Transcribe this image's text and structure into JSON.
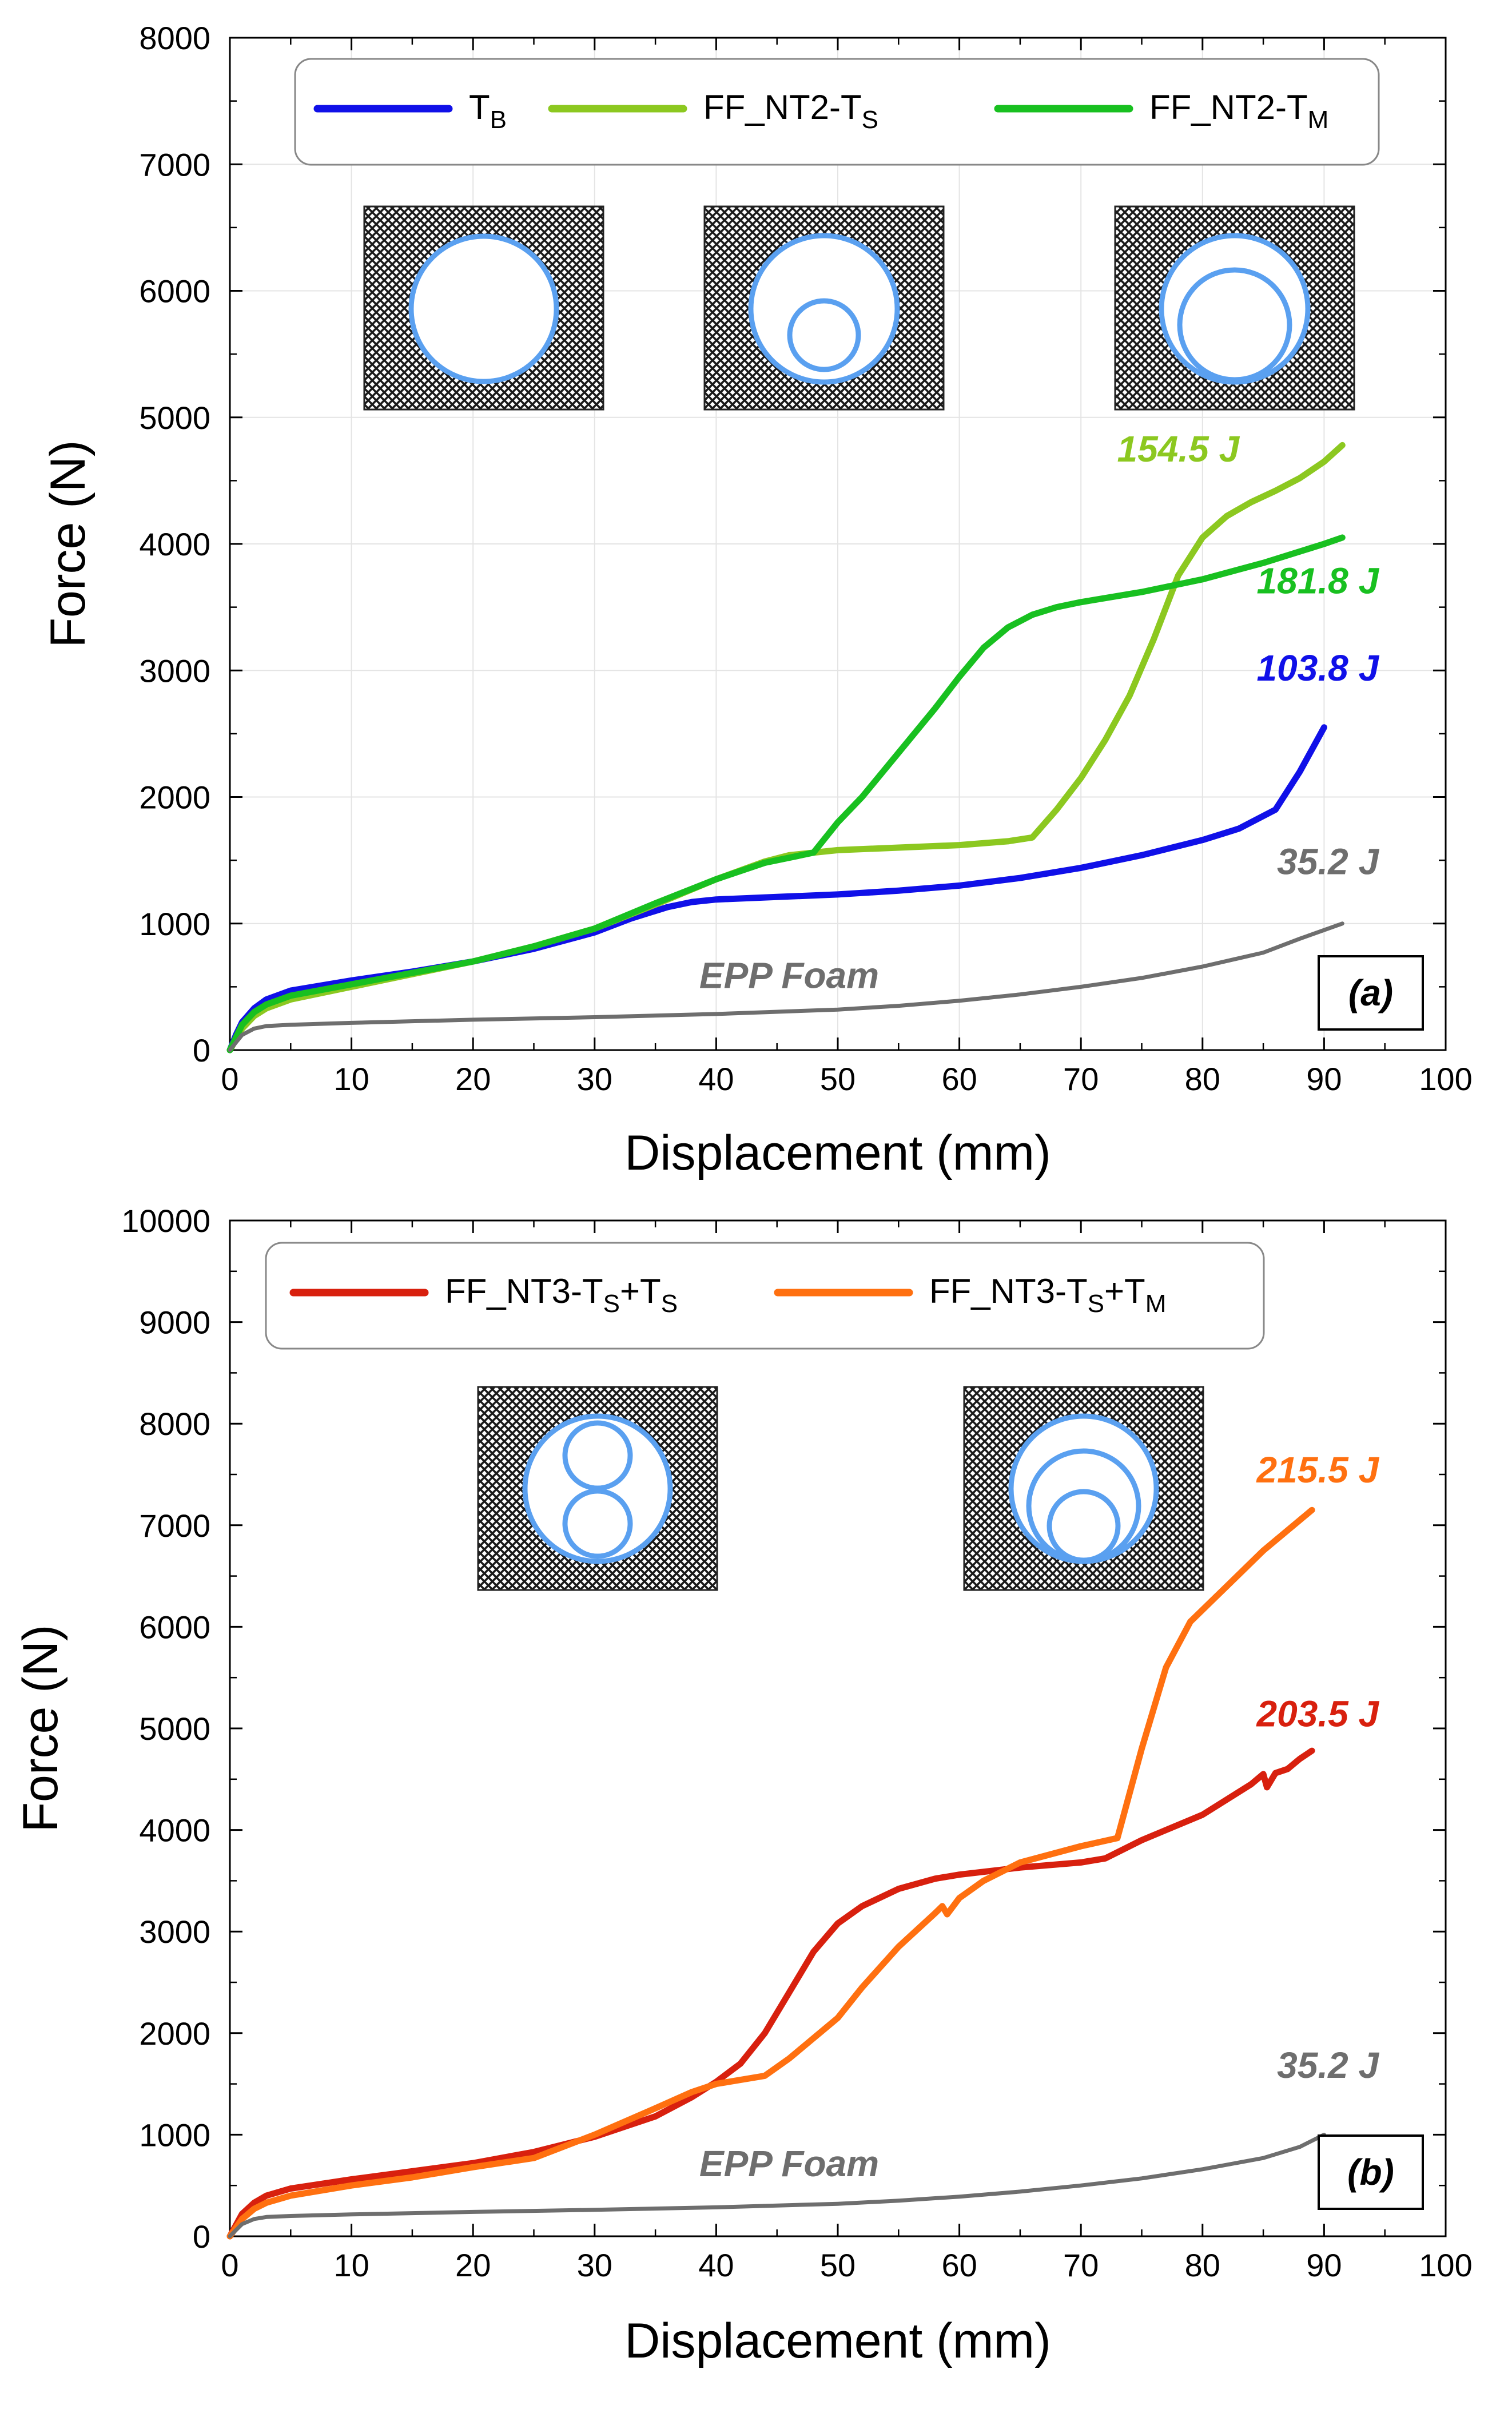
{
  "figure": {
    "panels": [
      {
        "label": "(a)"
      },
      {
        "label": "(b)"
      }
    ]
  },
  "colors": {
    "TB": "#1010e8",
    "FF_NT2_TS": "#8cc820",
    "FF_NT2_TM": "#18c020",
    "FF_NT3_TS_TS": "#d8200e",
    "FF_NT3_TS_TM": "#ff7010",
    "EPP": "#6e6e6e",
    "tube": "#5aa0f0"
  },
  "chart_data": [
    {
      "type": "line",
      "panel_label": "(a)",
      "xlabel": "Displacement (mm)",
      "ylabel": "Force (N)",
      "xlim": [
        0,
        100
      ],
      "ylim": [
        0,
        8000
      ],
      "xticks": [
        "0",
        "10",
        "20",
        "30",
        "40",
        "50",
        "60",
        "70",
        "80",
        "90",
        "100"
      ],
      "yticks": [
        "0",
        "1000",
        "2000",
        "3000",
        "4000",
        "5000",
        "6000",
        "7000",
        "8000"
      ],
      "grid": true,
      "legend_position": "top",
      "legend": [
        {
          "base": "T",
          "sub": "B",
          "suffix": "",
          "suffix_sub": "",
          "series": 0
        },
        {
          "base": "FF_NT2-T",
          "sub": "S",
          "suffix": "",
          "suffix_sub": "",
          "series": 1
        },
        {
          "base": "FF_NT2-T",
          "sub": "M",
          "suffix": "",
          "suffix_sub": "",
          "series": 2
        }
      ],
      "series": [
        {
          "name": "TB",
          "color": "#1010e8",
          "points": [
            [
              0,
              0
            ],
            [
              0.5,
              120
            ],
            [
              1,
              220
            ],
            [
              2,
              330
            ],
            [
              3,
              400
            ],
            [
              5,
              470
            ],
            [
              10,
              550
            ],
            [
              15,
              620
            ],
            [
              20,
              700
            ],
            [
              25,
              800
            ],
            [
              30,
              930
            ],
            [
              33,
              1040
            ],
            [
              36,
              1130
            ],
            [
              38,
              1170
            ],
            [
              40,
              1190
            ],
            [
              45,
              1210
            ],
            [
              50,
              1230
            ],
            [
              55,
              1260
            ],
            [
              60,
              1300
            ],
            [
              65,
              1360
            ],
            [
              70,
              1440
            ],
            [
              75,
              1540
            ],
            [
              80,
              1660
            ],
            [
              83,
              1750
            ],
            [
              86,
              1900
            ],
            [
              88,
              2200
            ],
            [
              90,
              2550
            ]
          ]
        },
        {
          "name": "FF_NT2-TS",
          "color": "#8cc820",
          "points": [
            [
              0,
              0
            ],
            [
              1,
              170
            ],
            [
              2,
              270
            ],
            [
              3,
              330
            ],
            [
              5,
              400
            ],
            [
              10,
              500
            ],
            [
              15,
              600
            ],
            [
              20,
              700
            ],
            [
              25,
              820
            ],
            [
              30,
              960
            ],
            [
              35,
              1150
            ],
            [
              40,
              1350
            ],
            [
              44,
              1490
            ],
            [
              46,
              1540
            ],
            [
              48,
              1560
            ],
            [
              50,
              1580
            ],
            [
              55,
              1600
            ],
            [
              60,
              1620
            ],
            [
              64,
              1650
            ],
            [
              66,
              1680
            ],
            [
              68,
              1900
            ],
            [
              70,
              2150
            ],
            [
              72,
              2450
            ],
            [
              74,
              2800
            ],
            [
              76,
              3250
            ],
            [
              78,
              3750
            ],
            [
              80,
              4050
            ],
            [
              82,
              4220
            ],
            [
              84,
              4330
            ],
            [
              86,
              4420
            ],
            [
              88,
              4520
            ],
            [
              90,
              4650
            ],
            [
              91.5,
              4780
            ]
          ]
        },
        {
          "name": "FF_NT2-TM",
          "color": "#18c020",
          "points": [
            [
              0,
              0
            ],
            [
              1,
              200
            ],
            [
              2,
              300
            ],
            [
              3,
              360
            ],
            [
              5,
              430
            ],
            [
              10,
              520
            ],
            [
              15,
              610
            ],
            [
              20,
              700
            ],
            [
              25,
              820
            ],
            [
              30,
              960
            ],
            [
              35,
              1160
            ],
            [
              40,
              1350
            ],
            [
              44,
              1480
            ],
            [
              47,
              1540
            ],
            [
              48,
              1560
            ],
            [
              50,
              1800
            ],
            [
              52,
              2000
            ],
            [
              55,
              2350
            ],
            [
              58,
              2700
            ],
            [
              60,
              2950
            ],
            [
              62,
              3180
            ],
            [
              64,
              3340
            ],
            [
              66,
              3440
            ],
            [
              68,
              3500
            ],
            [
              70,
              3540
            ],
            [
              75,
              3620
            ],
            [
              80,
              3720
            ],
            [
              85,
              3850
            ],
            [
              90,
              4000
            ],
            [
              91.5,
              4050
            ]
          ]
        },
        {
          "name": "EPP Foam",
          "color": "#6e6e6e",
          "points": [
            [
              0,
              0
            ],
            [
              0.5,
              60
            ],
            [
              1,
              120
            ],
            [
              2,
              170
            ],
            [
              3,
              190
            ],
            [
              5,
              200
            ],
            [
              10,
              215
            ],
            [
              20,
              240
            ],
            [
              30,
              260
            ],
            [
              40,
              285
            ],
            [
              50,
              320
            ],
            [
              55,
              350
            ],
            [
              60,
              390
            ],
            [
              65,
              440
            ],
            [
              70,
              500
            ],
            [
              75,
              570
            ],
            [
              80,
              660
            ],
            [
              85,
              770
            ],
            [
              88,
              880
            ],
            [
              91.5,
              1000
            ]
          ]
        }
      ],
      "annotations": [
        {
          "text": "154.5 J",
          "x": 78,
          "y": 4650,
          "color": "#8cc820"
        },
        {
          "text": "181.8 J",
          "x": 94.5,
          "y": 3610,
          "color": "#18c020"
        },
        {
          "text": "103.8 J",
          "x": 94.5,
          "y": 2920,
          "color": "#1010e8"
        },
        {
          "text": "35.2 J",
          "x": 94.5,
          "y": 1390,
          "color": "#6e6e6e"
        },
        {
          "text": "EPP Foam",
          "x": 46,
          "y": 490,
          "color": "#6e6e6e"
        }
      ]
    },
    {
      "type": "line",
      "panel_label": "(b)",
      "xlabel": "Displacement (mm)",
      "ylabel": "Force (N)",
      "xlim": [
        0,
        100
      ],
      "ylim": [
        0,
        10000
      ],
      "xticks": [
        "0",
        "10",
        "20",
        "30",
        "40",
        "50",
        "60",
        "70",
        "80",
        "90",
        "100"
      ],
      "yticks": [
        "0",
        "1000",
        "2000",
        "3000",
        "4000",
        "5000",
        "6000",
        "7000",
        "8000",
        "9000",
        "10000"
      ],
      "grid": false,
      "legend_position": "top",
      "legend": [
        {
          "base": "FF_NT3-T",
          "sub": "S",
          "suffix": "+T",
          "suffix_sub": "S",
          "series": 0
        },
        {
          "base": "FF_NT3-T",
          "sub": "S",
          "suffix": "+T",
          "suffix_sub": "M",
          "series": 1
        }
      ],
      "series": [
        {
          "name": "FF_NT3-TS+TS",
          "color": "#d8200e",
          "points": [
            [
              0,
              0
            ],
            [
              1,
              220
            ],
            [
              2,
              330
            ],
            [
              3,
              400
            ],
            [
              5,
              470
            ],
            [
              10,
              560
            ],
            [
              15,
              640
            ],
            [
              20,
              720
            ],
            [
              25,
              830
            ],
            [
              30,
              980
            ],
            [
              35,
              1180
            ],
            [
              38,
              1370
            ],
            [
              40,
              1520
            ],
            [
              42,
              1700
            ],
            [
              44,
              2000
            ],
            [
              46,
              2400
            ],
            [
              48,
              2800
            ],
            [
              50,
              3080
            ],
            [
              52,
              3250
            ],
            [
              55,
              3420
            ],
            [
              58,
              3520
            ],
            [
              60,
              3560
            ],
            [
              65,
              3630
            ],
            [
              70,
              3680
            ],
            [
              72,
              3720
            ],
            [
              75,
              3900
            ],
            [
              80,
              4150
            ],
            [
              84,
              4450
            ],
            [
              85,
              4550
            ],
            [
              85.3,
              4420
            ],
            [
              86,
              4560
            ],
            [
              87,
              4600
            ],
            [
              88,
              4700
            ],
            [
              89,
              4780
            ]
          ]
        },
        {
          "name": "FF_NT3-TS+TM",
          "color": "#ff7010",
          "points": [
            [
              0,
              0
            ],
            [
              1,
              170
            ],
            [
              2,
              270
            ],
            [
              3,
              330
            ],
            [
              5,
              400
            ],
            [
              10,
              500
            ],
            [
              15,
              580
            ],
            [
              20,
              680
            ],
            [
              25,
              770
            ],
            [
              30,
              1000
            ],
            [
              35,
              1260
            ],
            [
              38,
              1420
            ],
            [
              40,
              1500
            ],
            [
              44,
              1580
            ],
            [
              46,
              1750
            ],
            [
              48,
              1950
            ],
            [
              50,
              2150
            ],
            [
              52,
              2450
            ],
            [
              55,
              2850
            ],
            [
              58,
              3180
            ],
            [
              58.6,
              3250
            ],
            [
              59,
              3170
            ],
            [
              60,
              3330
            ],
            [
              62,
              3500
            ],
            [
              65,
              3680
            ],
            [
              70,
              3840
            ],
            [
              73,
              3920
            ],
            [
              75,
              4800
            ],
            [
              77,
              5600
            ],
            [
              79,
              6050
            ],
            [
              82,
              6400
            ],
            [
              85,
              6750
            ],
            [
              87,
              6950
            ],
            [
              89,
              7150
            ]
          ]
        },
        {
          "name": "EPP Foam",
          "color": "#6e6e6e",
          "points": [
            [
              0,
              0
            ],
            [
              0.5,
              60
            ],
            [
              1,
              120
            ],
            [
              2,
              170
            ],
            [
              3,
              190
            ],
            [
              5,
              200
            ],
            [
              10,
              215
            ],
            [
              20,
              240
            ],
            [
              30,
              260
            ],
            [
              40,
              285
            ],
            [
              50,
              320
            ],
            [
              55,
              350
            ],
            [
              60,
              390
            ],
            [
              65,
              440
            ],
            [
              70,
              500
            ],
            [
              75,
              570
            ],
            [
              80,
              660
            ],
            [
              85,
              770
            ],
            [
              88,
              880
            ],
            [
              90,
              1000
            ]
          ]
        }
      ],
      "annotations": [
        {
          "text": "215.5 J",
          "x": 94.5,
          "y": 7420,
          "color": "#ff7010"
        },
        {
          "text": "203.5 J",
          "x": 94.5,
          "y": 5020,
          "color": "#d8200e"
        },
        {
          "text": "35.2 J",
          "x": 94.5,
          "y": 1560,
          "color": "#6e6e6e"
        },
        {
          "text": "EPP Foam",
          "x": 46,
          "y": 590,
          "color": "#6e6e6e"
        }
      ]
    }
  ]
}
